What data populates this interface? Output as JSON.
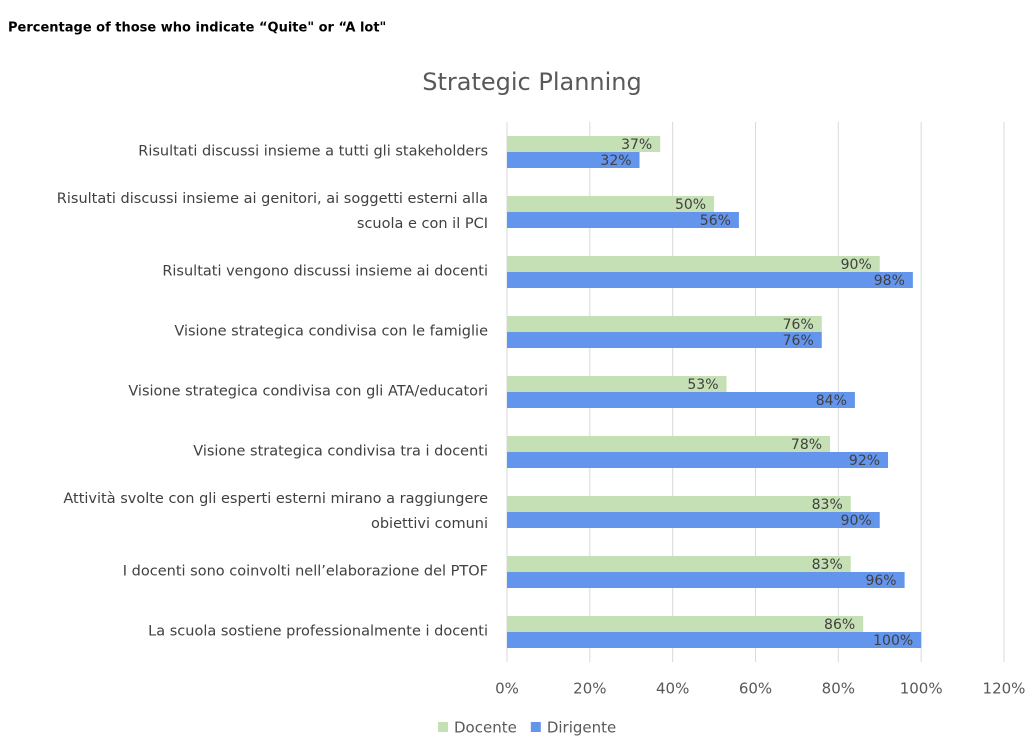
{
  "chart_data": {
    "type": "barh",
    "heading": "Percentage of those who indicate “Quite\" or “A lot\"",
    "title": "Strategic Planning",
    "categories": [
      "Risultati discussi insieme a tutti gli stakeholders",
      "Risultati discussi insieme ai genitori, ai soggetti esterni alla scuola e con il PCI",
      "Risultati vengono discussi insieme ai docenti",
      "Visione strategica condivisa con le famiglie",
      "Visione strategica condivisa con gli ATA/educatori",
      "Visione strategica condivisa tra i docenti",
      "Attività svolte con gli esperti esterni mirano a raggiungere obiettivi comuni",
      "I docenti sono coinvolti nell’elaborazione del PTOF",
      "La scuola sostiene professionalmente i docenti"
    ],
    "series": [
      {
        "name": "Docente",
        "color": "#c5e0b4",
        "values": [
          37,
          50,
          90,
          76,
          53,
          78,
          83,
          83,
          86
        ],
        "value_labels": [
          "37%",
          "50%",
          "90%",
          "76%",
          "53%",
          "78%",
          "83%",
          "83%",
          "86%"
        ]
      },
      {
        "name": "Dirigente",
        "color": "#6495ed",
        "values": [
          32,
          56,
          98,
          76,
          84,
          92,
          90,
          96,
          100
        ],
        "value_labels": [
          "32%",
          "56%",
          "98%",
          "76%",
          "84%",
          "92%",
          "90%",
          "96%",
          "100%"
        ]
      }
    ],
    "xlim": [
      0,
      120
    ],
    "xticks": [
      {
        "value": 0,
        "label": "0%"
      },
      {
        "value": 20,
        "label": "20%"
      },
      {
        "value": 40,
        "label": "40%"
      },
      {
        "value": 60,
        "label": "60%"
      },
      {
        "value": 80,
        "label": "80%"
      },
      {
        "value": 100,
        "label": "100%"
      },
      {
        "value": 120,
        "label": "120%"
      }
    ],
    "grid": true
  }
}
